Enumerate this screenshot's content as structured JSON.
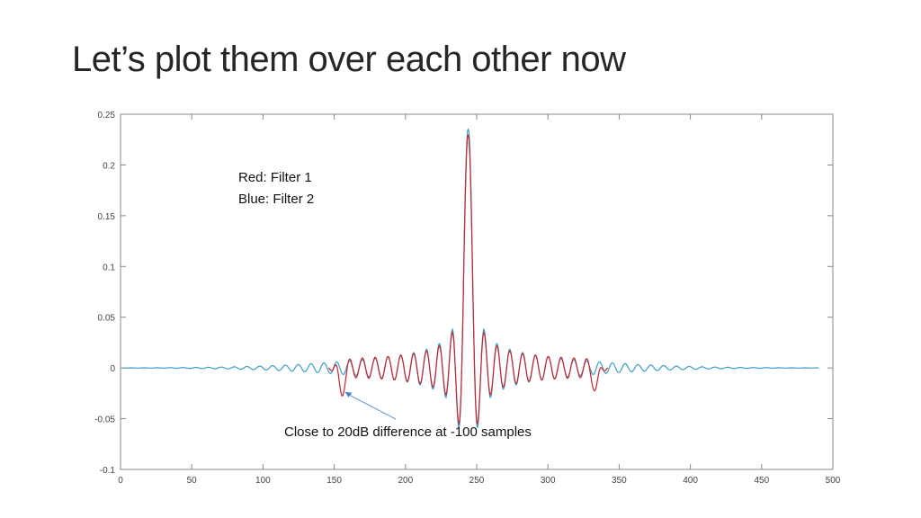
{
  "slide": {
    "title": "Let’s plot them over each other now"
  },
  "chart_data": {
    "type": "line",
    "title": "",
    "xlabel": "",
    "ylabel": "",
    "xlim": [
      0,
      500
    ],
    "ylim": [
      -0.1,
      0.25
    ],
    "xticks": [
      "0",
      "50",
      "100",
      "150",
      "200",
      "250",
      "300",
      "350",
      "400",
      "450",
      "500"
    ],
    "yticks": [
      "-0.1",
      "-0.05",
      "0",
      "0.05",
      "0.1",
      "0.15",
      "0.2",
      "0.25"
    ],
    "grid": false,
    "series": [
      {
        "legend_text": "Red: Filter 1",
        "color": "#c1272d",
        "x_range": [
          146,
          342
        ],
        "center": 244,
        "peak": 0.23,
        "first_minima": -0.05,
        "edge_dips": [
          {
            "x": 155,
            "y": -0.02
          },
          {
            "x": 334,
            "y": -0.018
          }
        ]
      },
      {
        "legend_text": "Blue: Filter 2",
        "color": "#3d9dc9",
        "x_range": [
          1,
          490
        ],
        "center": 244,
        "peak": 0.235,
        "first_minima": -0.05
      }
    ],
    "annotations": [
      {
        "text": "Close to 20dB difference at -100 samples",
        "arrow_to": {
          "x": 155,
          "y": -0.02
        },
        "arrow_color": "#4a7fd0"
      }
    ]
  }
}
